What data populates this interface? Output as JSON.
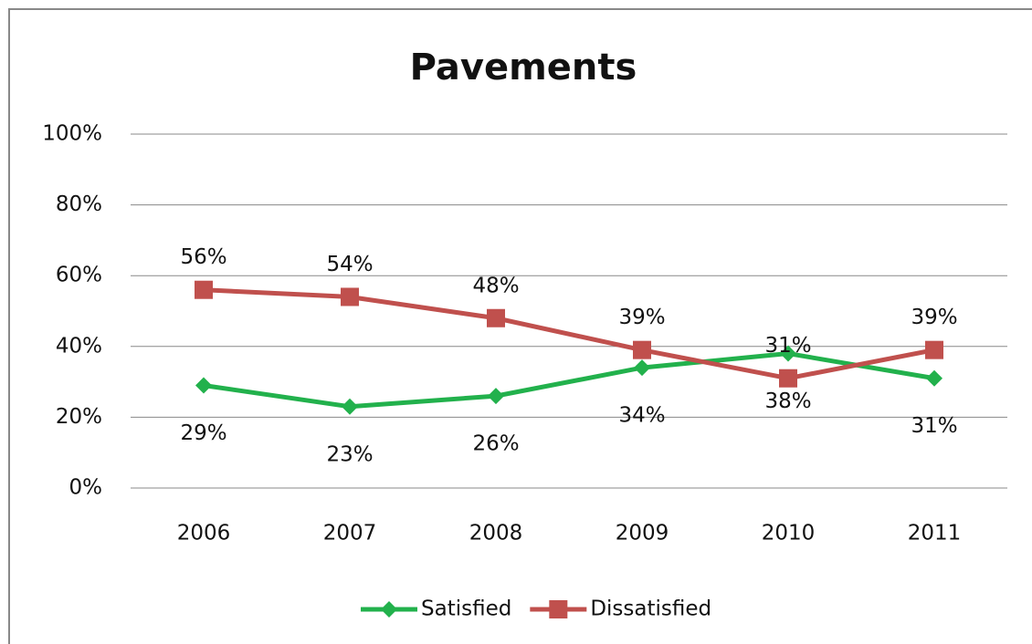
{
  "chart_data": {
    "type": "line",
    "title": "Pavements",
    "categories": [
      "2006",
      "2007",
      "2008",
      "2009",
      "2010",
      "2011"
    ],
    "series": [
      {
        "name": "Satisfied",
        "color": "#22b14c",
        "marker": "diamond",
        "values": [
          29,
          23,
          26,
          34,
          38,
          31
        ],
        "value_labels": [
          "29%",
          "23%",
          "26%",
          "34%",
          "38%",
          "31%"
        ]
      },
      {
        "name": "Dissatisfied",
        "color": "#c0504d",
        "marker": "square",
        "values": [
          56,
          54,
          48,
          39,
          31,
          39
        ],
        "value_labels": [
          "56%",
          "54%",
          "48%",
          "39%",
          "31%",
          "39%"
        ]
      }
    ],
    "ylim": [
      0,
      100
    ],
    "yticks": [
      {
        "value": 0,
        "label": "0%"
      },
      {
        "value": 20,
        "label": "20%"
      },
      {
        "value": 40,
        "label": "40%"
      },
      {
        "value": 60,
        "label": "60%"
      },
      {
        "value": 80,
        "label": "80%"
      },
      {
        "value": 100,
        "label": "100%"
      }
    ],
    "grid": true,
    "legend": "bottom"
  }
}
